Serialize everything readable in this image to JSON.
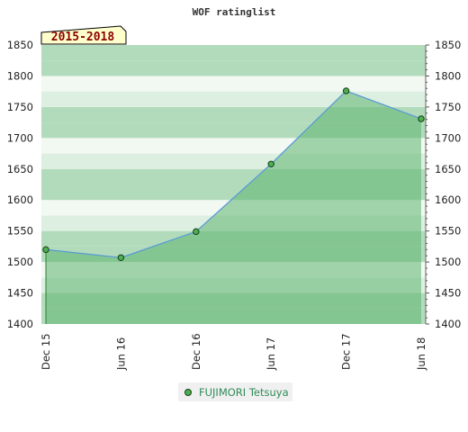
{
  "chart_data": {
    "type": "area",
    "title": "WOF ratinglist",
    "period_label": "2015-2018",
    "x": [
      "Dec 15",
      "Jun 16",
      "Dec 16",
      "Jun 17",
      "Dec 17",
      "Jun 18"
    ],
    "series": [
      {
        "name": "FUJIMORI Tetsuya",
        "values": [
          1520,
          1507,
          1549,
          1658,
          1776,
          1731
        ]
      }
    ],
    "ylim": [
      1400,
      1850
    ],
    "yticks": [
      1400,
      1450,
      1500,
      1550,
      1600,
      1650,
      1700,
      1750,
      1800,
      1850
    ],
    "y_axis_sides": "both",
    "legend_position": "bottom-center",
    "colors": {
      "area_fill": "#5fb56f",
      "line": "#5b9bd5",
      "marker": "#4caf50",
      "band_dark": "#b2dbbc",
      "band_light": "#f2f8f2"
    }
  }
}
